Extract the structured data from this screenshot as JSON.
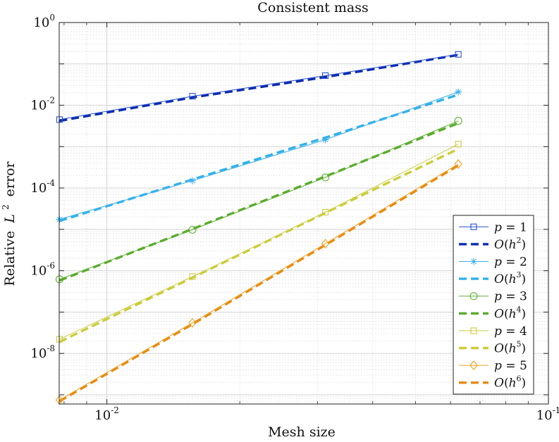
{
  "chart_data": {
    "type": "line",
    "title": "Consistent mass",
    "xlabel": "Mesh size",
    "ylabel_prefix": "Relative",
    "ylabel_symbol": "L",
    "ylabel_sup": "2",
    "ylabel_suffix": "error",
    "xscale": "log",
    "yscale": "log",
    "xlim": [
      0.0078,
      0.1
    ],
    "ylim": [
      6e-10,
      1
    ],
    "grid": true,
    "x_ticks": [
      {
        "value": 0.01,
        "base": "10",
        "exp": "-2"
      },
      {
        "value": 0.1,
        "base": "10",
        "exp": "-1"
      }
    ],
    "y_ticks": [
      {
        "value": 1,
        "base": "10",
        "exp": "0"
      },
      {
        "value": 0.01,
        "base": "10",
        "exp": "-2"
      },
      {
        "value": 0.0001,
        "base": "10",
        "exp": "-4"
      },
      {
        "value": 1e-06,
        "base": "10",
        "exp": "-6"
      },
      {
        "value": 1e-08,
        "base": "10",
        "exp": "-8"
      }
    ],
    "x": [
      0.0078125,
      0.015625,
      0.03125,
      0.0625
    ],
    "legend_position": "bottom-right",
    "series": [
      {
        "name": "p = 1",
        "label_var": "p",
        "label_val": "1",
        "kind": "data",
        "marker": "square",
        "color": "#2850d0",
        "values": [
          0.0045,
          0.0165,
          0.052,
          0.17
        ]
      },
      {
        "name": "O(h^2)",
        "label_var": "O",
        "label_val": "2",
        "kind": "rate",
        "color": "#0b2ab0",
        "values": [
          0.0042,
          0.0155,
          0.048,
          0.165
        ]
      },
      {
        "name": "p = 2",
        "label_var": "p",
        "label_val": "2",
        "kind": "data",
        "marker": "asterisk",
        "color": "#40b0ee",
        "values": [
          1.75e-05,
          0.00015,
          0.00147,
          0.021
        ]
      },
      {
        "name": "O(h^3)",
        "label_var": "O",
        "label_val": "3",
        "kind": "rate",
        "color": "#30b2ea",
        "values": [
          1.6e-05,
          0.00016,
          0.00165,
          0.018
        ]
      },
      {
        "name": "p = 3",
        "label_var": "p",
        "label_val": "3",
        "kind": "data",
        "marker": "circle",
        "color": "#5cb232",
        "values": [
          6.2e-07,
          9.8e-06,
          0.00018,
          0.0042
        ]
      },
      {
        "name": "O(h^4)",
        "label_var": "O",
        "label_val": "4",
        "kind": "rate",
        "color": "#5aaa2a",
        "values": [
          5.8e-07,
          1.02e-05,
          0.00019,
          0.0037
        ]
      },
      {
        "name": "p = 4",
        "label_var": "p",
        "label_val": "4",
        "kind": "data",
        "marker": "square",
        "color": "#cccc40",
        "values": [
          2.2e-08,
          7.2e-07,
          2.6e-05,
          0.00115
        ]
      },
      {
        "name": "O(h^5)",
        "label_var": "O",
        "label_val": "5",
        "kind": "rate",
        "color": "#cccc3a",
        "values": [
          1.9e-08,
          6.8e-07,
          2.5e-05,
          0.00088
        ]
      },
      {
        "name": "p = 5",
        "label_var": "p",
        "label_val": "5",
        "kind": "data",
        "marker": "diamond",
        "color": "#f0a020",
        "values": [
          7.5e-10,
          5.5e-08,
          4.5e-06,
          0.00038
        ]
      },
      {
        "name": "O(h^6)",
        "label_var": "O",
        "label_val": "6",
        "kind": "rate",
        "color": "#e88a10",
        "values": [
          7e-10,
          5.1e-08,
          4.2e-06,
          0.00035
        ]
      }
    ]
  }
}
